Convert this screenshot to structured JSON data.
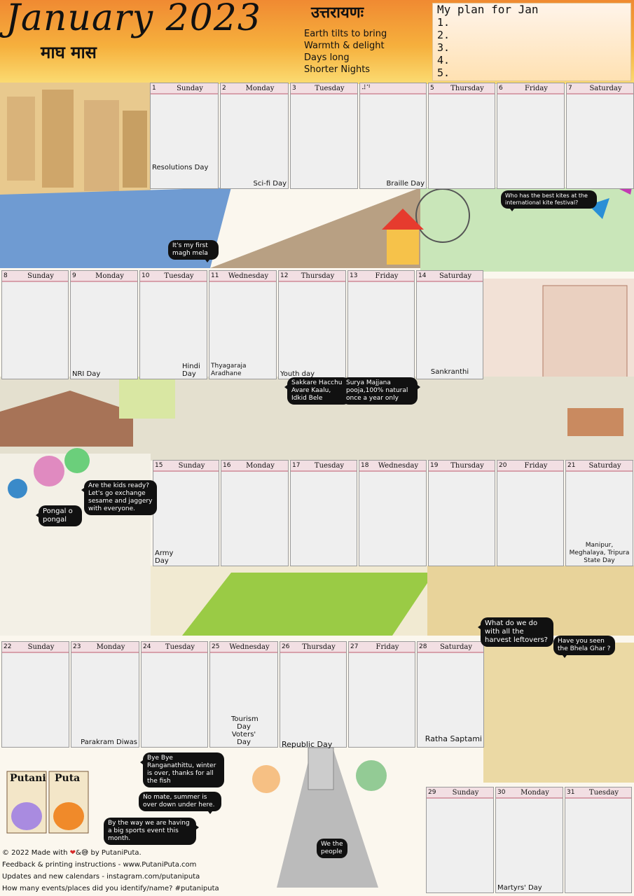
{
  "header": {
    "title": "January 2023",
    "hindi_month": "माघ मास",
    "uttarayan_title": "उत्तरायणः",
    "uttarayan_lines": [
      "Earth tilts to bring",
      "Warmth & delight",
      "Days long",
      "Shorter Nights"
    ],
    "plan_title": "My plan for Jan",
    "plan_items": [
      "1.",
      "2.",
      "3.",
      "4.",
      "5."
    ]
  },
  "weeks": [
    {
      "days": [
        {
          "date": "1",
          "day": "Sunday",
          "event": "Resolutions Day",
          "align": "left"
        },
        {
          "date": "2",
          "day": "Monday",
          "event": "Sci-fi Day",
          "align": "right"
        },
        {
          "date": "3",
          "day": "Tuesday",
          "event": "",
          "align": "left"
        },
        {
          "date": "⠼⠙",
          "day": "",
          "event": "Braille Day",
          "align": "right"
        },
        {
          "date": "5",
          "day": "Thursday",
          "event": "",
          "align": "left"
        },
        {
          "date": "6",
          "day": "Friday",
          "event": "",
          "align": "left"
        },
        {
          "date": "7",
          "day": "Saturday",
          "event": "",
          "align": "left"
        }
      ]
    },
    {
      "days": [
        {
          "date": "8",
          "day": "Sunday",
          "event": "",
          "align": "left"
        },
        {
          "date": "9",
          "day": "Monday",
          "event": "NRI Day",
          "align": "left"
        },
        {
          "date": "10",
          "day": "Tuesday",
          "event": "Hindi Day",
          "align": "right"
        },
        {
          "date": "11",
          "day": "Wednesday",
          "event": "Thyagaraja Aradhane",
          "align": "left"
        },
        {
          "date": "12",
          "day": "Thursday",
          "event": "Youth day",
          "align": "left"
        },
        {
          "date": "13",
          "day": "Friday",
          "event": "",
          "align": "left"
        },
        {
          "date": "14",
          "day": "Saturday",
          "event": "Sankranthi",
          "align": "center"
        }
      ]
    },
    {
      "days": [
        {
          "date": "15",
          "day": "Sunday",
          "event": "Army Day",
          "align": "left"
        },
        {
          "date": "16",
          "day": "Monday",
          "event": "",
          "align": "left"
        },
        {
          "date": "17",
          "day": "Tuesday",
          "event": "",
          "align": "left"
        },
        {
          "date": "18",
          "day": "Wednesday",
          "event": "",
          "align": "left"
        },
        {
          "date": "19",
          "day": "Thursday",
          "event": "",
          "align": "left"
        },
        {
          "date": "20",
          "day": "Friday",
          "event": "",
          "align": "left"
        },
        {
          "date": "21",
          "day": "Saturday",
          "event": "Manipur, Meghalaya, Tripura State Day",
          "align": "right"
        }
      ]
    },
    {
      "days": [
        {
          "date": "22",
          "day": "Sunday",
          "event": "",
          "align": "left"
        },
        {
          "date": "23",
          "day": "Monday",
          "event": "Parakram Diwas",
          "align": "right"
        },
        {
          "date": "24",
          "day": "Tuesday",
          "event": "",
          "align": "left"
        },
        {
          "date": "25",
          "day": "Wednesday",
          "event": "Tourism Day Voters' Day",
          "align": "center"
        },
        {
          "date": "26",
          "day": "Thursday",
          "event": "Republic Day",
          "align": "left"
        },
        {
          "date": "27",
          "day": "Friday",
          "event": "",
          "align": "left"
        },
        {
          "date": "28",
          "day": "Saturday",
          "event": "Ratha Saptami",
          "align": "right"
        }
      ]
    },
    {
      "days": [
        {
          "date": "29",
          "day": "Sunday",
          "event": "",
          "align": "left"
        },
        {
          "date": "30",
          "day": "Monday",
          "event": "Martyrs' Day",
          "align": "left"
        },
        {
          "date": "31",
          "day": "Tuesday",
          "event": "",
          "align": "left"
        }
      ]
    }
  ],
  "bubbles": {
    "magh_mela": "It's my first magh mela",
    "kites": "Who has the best kites at the international kite festival?",
    "sakkare": "Sakkare Hacchu, Avare Kaalu, Idkid Bele",
    "surya": "Surya Majjana pooja,100% natural once a year only",
    "kids": "Are the kids ready? Let's go exchange sesame and jaggery with everyone.",
    "pongal": "Pongal o pongal",
    "harvest": "What do we do with all the harvest leftovers?",
    "bhela": "Have you seen the Bhela Ghar ?",
    "bye": "Bye Bye Ranganathittu, winter is over, thanks for all the fish",
    "summer": "No mate, summer is over down under here.",
    "sports": "By the way we are having a big sports event this month.",
    "people": "We the people"
  },
  "logo": {
    "word1": "Putani",
    "word2": "Puta"
  },
  "footer": {
    "line1_pre": "© 2022 Made with",
    "line1_post": "by PutaniPuta.",
    "line2": "Feedback & printing instructions - www.PutaniPuta.com",
    "line3": "Updates and new calendars - instagram.com/putaniputa",
    "line4": "How many events/places did you identify/name? #putaniputa"
  },
  "colors": {
    "header_top": "#f08a32",
    "header_bottom": "#fbdc72",
    "cell_head": "#f2dfe3",
    "cell_line": "#d7a0ab"
  }
}
